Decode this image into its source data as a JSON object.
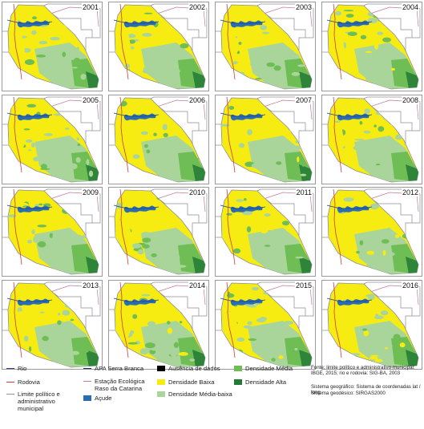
{
  "panels": [
    {
      "year": "2001"
    },
    {
      "year": "2002"
    },
    {
      "year": "2003"
    },
    {
      "year": "2004"
    },
    {
      "year": "2005"
    },
    {
      "year": "2006"
    },
    {
      "year": "2007"
    },
    {
      "year": "2008"
    },
    {
      "year": "2009"
    },
    {
      "year": "2010"
    },
    {
      "year": "2011"
    },
    {
      "year": "2012"
    },
    {
      "year": "2013"
    },
    {
      "year": "2014"
    },
    {
      "year": "2015"
    },
    {
      "year": "2016"
    }
  ],
  "colors": {
    "baixa": "#f6ec12",
    "media_baixa": "#a9d59a",
    "media": "#6fbe55",
    "alta": "#237a35",
    "acude": "#2a6db0",
    "rio": "#1c3f94",
    "rodovia": "#d23a30",
    "limite": "#8c8c96",
    "apa": "#1d2a6c",
    "estacao": "#c07a9a",
    "ausencia": "#000000"
  },
  "legend": {
    "rio": "Rio",
    "rodovia": "Rodovia",
    "limite": "Limite político e administrativo municipal",
    "apa": "APA Serra Branca",
    "estacao": "Estação Ecológica Raso da Catarina",
    "acude": "Açude",
    "ausencia": "Ausência de dados",
    "baixa": "Densidade Baixa",
    "media_baixa": "Densidade Média-baixa",
    "media": "Densidade Média",
    "alta": "Densidade Alta"
  },
  "notes": {
    "fonte": "Fonte: limite político e administrativo municipal: IBGE, 2015; rio e rodovia: SIG-BA, 2003",
    "sistema_geografico": "Sistema geográfico: Sistema de coordenadas lat / long",
    "sistema_geodesico": "Sistema geodésico: SIRGAS2000"
  }
}
